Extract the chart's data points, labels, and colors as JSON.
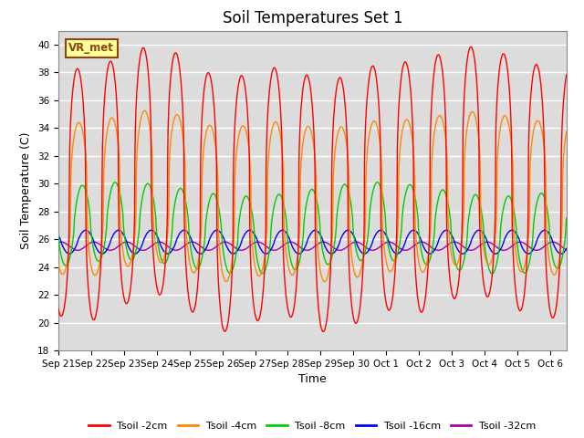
{
  "title": "Soil Temperatures Set 1",
  "xlabel": "Time",
  "ylabel": "Soil Temperature (C)",
  "ylim": [
    18,
    41
  ],
  "yticks": [
    18,
    20,
    22,
    24,
    26,
    28,
    30,
    32,
    34,
    36,
    38,
    40
  ],
  "bg_color": "#dcdcdc",
  "fig_bg": "#ffffff",
  "annotation_text": "VR_met",
  "annotation_bg": "#ffff99",
  "annotation_border": "#8b4513",
  "colors": {
    "tsoil_2cm": "#ff0000",
    "tsoil_4cm": "#ff8800",
    "tsoil_8cm": "#00cc00",
    "tsoil_16cm": "#0000ff",
    "tsoil_32cm": "#aa00aa"
  },
  "legend_labels": [
    "Tsoil -2cm",
    "Tsoil -4cm",
    "Tsoil -8cm",
    "Tsoil -16cm",
    "Tsoil -32cm"
  ],
  "x_tick_labels": [
    "Sep 21",
    "Sep 22",
    "Sep 23",
    "Sep 24",
    "Sep 25",
    "Sep 26",
    "Sep 27",
    "Sep 28",
    "Sep 29",
    "Sep 30",
    "Oct 1",
    "Oct 2",
    "Oct 3",
    "Oct 4",
    "Oct 5",
    "Oct 6"
  ],
  "num_days": 15.5,
  "samples_per_hour": 4
}
